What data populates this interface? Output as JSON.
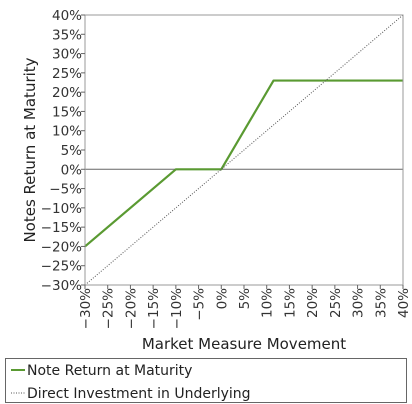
{
  "chart_data": {
    "type": "line",
    "title": "",
    "xlabel": "Market Measure Movement",
    "ylabel": "Notes Return at Maturity",
    "xlim": [
      -30,
      40
    ],
    "ylim": [
      -30,
      40
    ],
    "x_ticks": [
      "-30%",
      "-25%",
      "-20%",
      "-15%",
      "-10%",
      "-5%",
      "0%",
      "5%",
      "10%",
      "15%",
      "20%",
      "25%",
      "30%",
      "35%",
      "40%"
    ],
    "y_ticks": [
      "-30%",
      "-25%",
      "-20%",
      "-15%",
      "-10%",
      "-5%",
      "0%",
      "5%",
      "10%",
      "15%",
      "20%",
      "25%",
      "30%",
      "35%",
      "40%"
    ],
    "grid": false,
    "legend_position": "bottom",
    "series": [
      {
        "name": "Note Return at Maturity",
        "color": "#5a9a32",
        "style": "solid",
        "x": [
          -30,
          -10,
          0,
          11.5,
          40
        ],
        "y": [
          -20,
          0,
          0,
          23,
          23
        ]
      },
      {
        "name": "Direct Investment in Underlying",
        "color": "#555555",
        "style": "dotted",
        "x": [
          -30,
          40
        ],
        "y": [
          -30,
          40
        ]
      }
    ]
  }
}
